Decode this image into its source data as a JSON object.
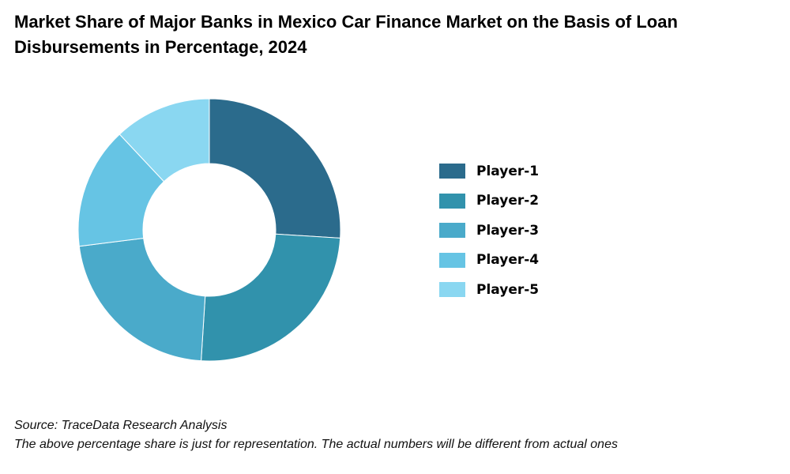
{
  "chart_data": {
    "type": "pie",
    "variant": "donut",
    "title": "Market Share of Major Banks in Mexico Car Finance Market on the Basis of Loan Disbursements in Percentage, 2024",
    "categories": [
      "Player-1",
      "Player-2",
      "Player-3",
      "Player-4",
      "Player-5"
    ],
    "values": [
      26,
      25,
      22,
      15,
      12
    ],
    "colors": [
      "#2b6b8c",
      "#3192ac",
      "#4aaaca",
      "#66c4e4",
      "#8ad7f1"
    ],
    "legend_position": "right"
  },
  "footer": {
    "source": "Source: TraceData Research Analysis",
    "note": "The above percentage share is just for representation. The actual numbers will be different from actual ones"
  }
}
